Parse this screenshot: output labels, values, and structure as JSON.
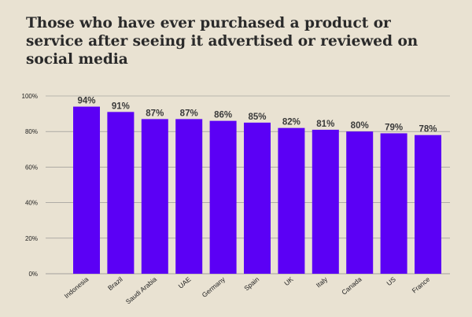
{
  "chart_data": {
    "type": "bar",
    "title": "Those who have ever purchased a product or service after seeing it advertised or reviewed on social media",
    "categories": [
      "Indonesia",
      "Brazil",
      "Saudi Arabia",
      "UAE",
      "Germany",
      "Spain",
      "UK",
      "Italy",
      "Canada",
      "US",
      "France"
    ],
    "values": [
      94,
      91,
      87,
      87,
      86,
      85,
      82,
      81,
      80,
      79,
      78
    ],
    "data_labels": [
      "94%",
      "91%",
      "87%",
      "87%",
      "86%",
      "85%",
      "82%",
      "81%",
      "80%",
      "79%",
      "78%"
    ],
    "y_ticks": [
      {
        "value": 0,
        "label": "0%"
      },
      {
        "value": 20,
        "label": "20%"
      },
      {
        "value": 40,
        "label": "40%"
      },
      {
        "value": 60,
        "label": "60%"
      },
      {
        "value": 80,
        "label": "80%"
      },
      {
        "value": 100,
        "label": "100%"
      }
    ],
    "ylim": [
      0,
      100
    ],
    "xlabel": "",
    "ylabel": "",
    "grid": true,
    "bar_color": "#5b00f5",
    "grid_color": "#8a8a8a",
    "label_color": "#3a3a3a"
  }
}
